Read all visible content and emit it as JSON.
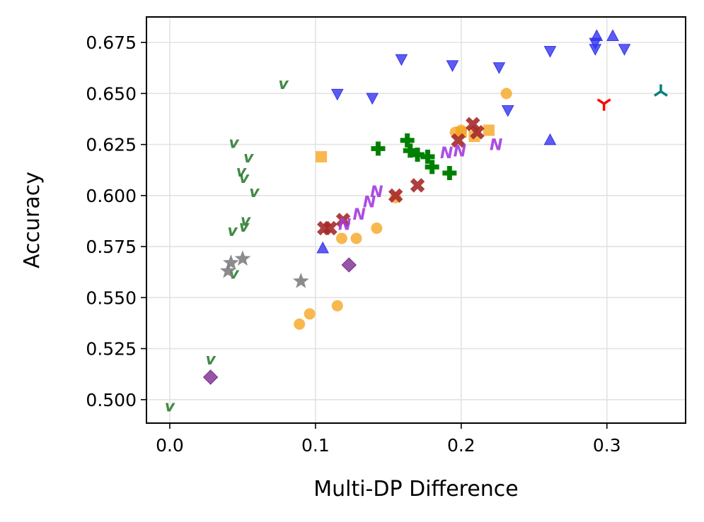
{
  "chart_data": {
    "type": "scatter",
    "title": "",
    "xlabel": "Multi-DP Difference",
    "ylabel": "Accuracy",
    "xlim": [
      -0.016,
      0.354
    ],
    "ylim": [
      0.4885,
      0.6875
    ],
    "xticks": [
      0.0,
      0.1,
      0.2,
      0.3
    ],
    "xtick_labels": [
      "0.0",
      "0.1",
      "0.2",
      "0.3"
    ],
    "yticks": [
      0.5,
      0.525,
      0.55,
      0.575,
      0.6,
      0.625,
      0.65,
      0.675
    ],
    "ytick_labels": [
      "0.500",
      "0.525",
      "0.550",
      "0.575",
      "0.600",
      "0.625",
      "0.650",
      "0.675"
    ],
    "grid": true,
    "series": [
      {
        "name": "series-v-green",
        "marker": "v-letter",
        "color": "#2e7d32",
        "points": [
          [
            0.0,
            0.497
          ],
          [
            0.028,
            0.52
          ],
          [
            0.044,
            0.626
          ],
          [
            0.049,
            0.612
          ],
          [
            0.051,
            0.609
          ],
          [
            0.054,
            0.619
          ],
          [
            0.058,
            0.602
          ],
          [
            0.043,
            0.583
          ],
          [
            0.052,
            0.588
          ],
          [
            0.051,
            0.585
          ],
          [
            0.044,
            0.562
          ],
          [
            0.078,
            0.655
          ]
        ]
      },
      {
        "name": "series-triangle-down-blue",
        "marker": "triangle-down",
        "color": "#3333ee",
        "points": [
          [
            0.115,
            0.65
          ],
          [
            0.139,
            0.648
          ],
          [
            0.159,
            0.667
          ],
          [
            0.194,
            0.664
          ],
          [
            0.226,
            0.663
          ],
          [
            0.232,
            0.642
          ],
          [
            0.261,
            0.671
          ],
          [
            0.292,
            0.672
          ],
          [
            0.292,
            0.675
          ],
          [
            0.312,
            0.672
          ]
        ]
      },
      {
        "name": "series-triangle-up-blue",
        "marker": "triangle-up",
        "color": "#3333ee",
        "points": [
          [
            0.105,
            0.574
          ],
          [
            0.261,
            0.627
          ],
          [
            0.293,
            0.678
          ],
          [
            0.304,
            0.678
          ]
        ]
      },
      {
        "name": "series-circle-orange",
        "marker": "circle",
        "color": "#f5a623",
        "points": [
          [
            0.089,
            0.537
          ],
          [
            0.096,
            0.542
          ],
          [
            0.115,
            0.546
          ],
          [
            0.118,
            0.579
          ],
          [
            0.128,
            0.579
          ],
          [
            0.142,
            0.584
          ],
          [
            0.155,
            0.599
          ],
          [
            0.196,
            0.631
          ],
          [
            0.2,
            0.632
          ],
          [
            0.231,
            0.65
          ]
        ]
      },
      {
        "name": "series-square-orange",
        "marker": "square",
        "color": "#f5a623",
        "points": [
          [
            0.104,
            0.619
          ],
          [
            0.2,
            0.631
          ],
          [
            0.209,
            0.629
          ],
          [
            0.219,
            0.632
          ]
        ]
      },
      {
        "name": "series-plus-green",
        "marker": "plus-filled",
        "color": "#008000",
        "points": [
          [
            0.143,
            0.623
          ],
          [
            0.163,
            0.627
          ],
          [
            0.165,
            0.622
          ],
          [
            0.17,
            0.62
          ],
          [
            0.177,
            0.619
          ],
          [
            0.18,
            0.614
          ],
          [
            0.192,
            0.611
          ]
        ]
      },
      {
        "name": "series-x-darkred",
        "marker": "x-filled",
        "color": "#a52a2a",
        "points": [
          [
            0.106,
            0.584
          ],
          [
            0.11,
            0.584
          ],
          [
            0.119,
            0.588
          ],
          [
            0.155,
            0.6
          ],
          [
            0.17,
            0.605
          ],
          [
            0.198,
            0.627
          ],
          [
            0.208,
            0.635
          ],
          [
            0.211,
            0.631
          ]
        ]
      },
      {
        "name": "series-n-purple",
        "marker": "n-letter",
        "color": "#a33be0",
        "points": [
          [
            0.12,
            0.586
          ],
          [
            0.13,
            0.591
          ],
          [
            0.137,
            0.597
          ],
          [
            0.142,
            0.602
          ],
          [
            0.19,
            0.621
          ],
          [
            0.199,
            0.622
          ],
          [
            0.224,
            0.625
          ]
        ]
      },
      {
        "name": "series-star-grey",
        "marker": "star",
        "color": "#808080",
        "points": [
          [
            0.04,
            0.563
          ],
          [
            0.042,
            0.567
          ],
          [
            0.05,
            0.569
          ],
          [
            0.09,
            0.558
          ]
        ]
      },
      {
        "name": "series-diamond-purple",
        "marker": "diamond",
        "color": "#7b2c8f",
        "points": [
          [
            0.028,
            0.511
          ],
          [
            0.123,
            0.566
          ]
        ]
      },
      {
        "name": "series-tri-down-red",
        "marker": "tri-down",
        "color": "#ff0000",
        "points": [
          [
            0.298,
            0.645
          ]
        ]
      },
      {
        "name": "series-tri-up-teal",
        "marker": "tri-up",
        "color": "#008080",
        "points": [
          [
            0.337,
            0.651
          ]
        ]
      }
    ]
  }
}
